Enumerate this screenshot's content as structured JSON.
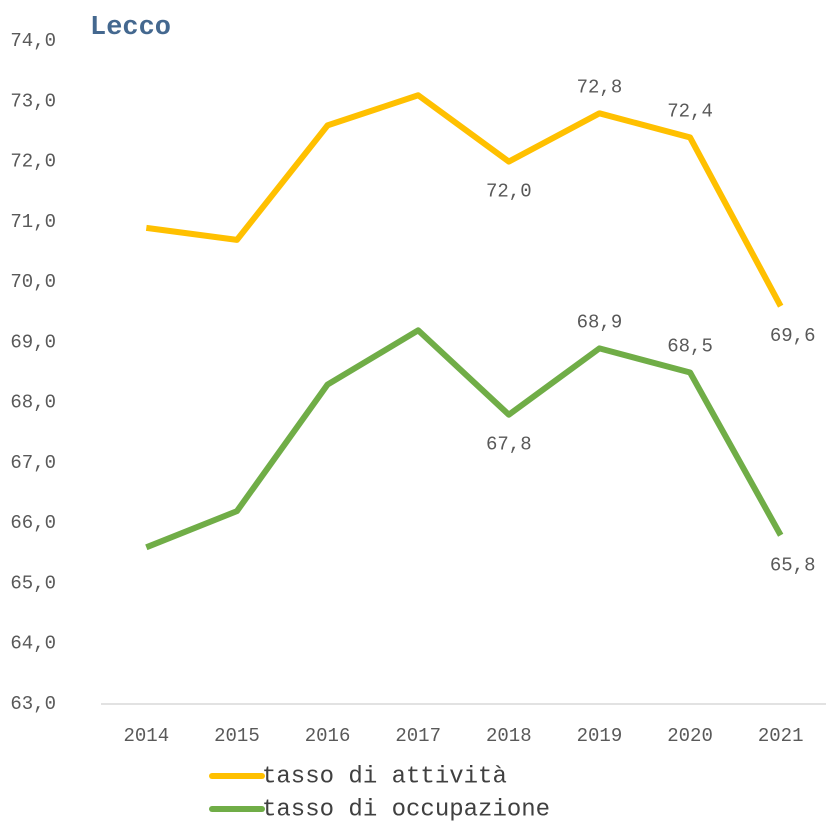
{
  "chart_data": {
    "type": "line",
    "title": "Lecco",
    "categories": [
      "2014",
      "2015",
      "2016",
      "2017",
      "2018",
      "2019",
      "2020",
      "2021"
    ],
    "series": [
      {
        "name": "tasso di attività",
        "color": "#ffc000",
        "values": [
          70.9,
          70.7,
          72.6,
          73.1,
          72.0,
          72.8,
          72.4,
          69.6
        ],
        "value_labels": [
          null,
          null,
          null,
          null,
          "72,0",
          "72,8",
          "72,4",
          "69,6"
        ]
      },
      {
        "name": "tasso di occupazione",
        "color": "#70ad47",
        "values": [
          65.6,
          66.2,
          68.3,
          69.2,
          67.8,
          68.9,
          68.5,
          65.8
        ],
        "value_labels": [
          null,
          null,
          null,
          null,
          "67,8",
          "68,9",
          "68,5",
          "65,8"
        ]
      }
    ],
    "ylim": [
      63,
      74
    ],
    "yticks": [
      {
        "value": 63,
        "label": "63,0"
      },
      {
        "value": 64,
        "label": "64,0"
      },
      {
        "value": 65,
        "label": "65,0"
      },
      {
        "value": 66,
        "label": "66,0"
      },
      {
        "value": 67,
        "label": "67,0"
      },
      {
        "value": 68,
        "label": "68,0"
      },
      {
        "value": 69,
        "label": "69,0"
      },
      {
        "value": 70,
        "label": "70,0"
      },
      {
        "value": 71,
        "label": "71,0"
      },
      {
        "value": 72,
        "label": "72,0"
      },
      {
        "value": 73,
        "label": "73,0"
      },
      {
        "value": 74,
        "label": "74,0"
      }
    ],
    "grid": false
  }
}
